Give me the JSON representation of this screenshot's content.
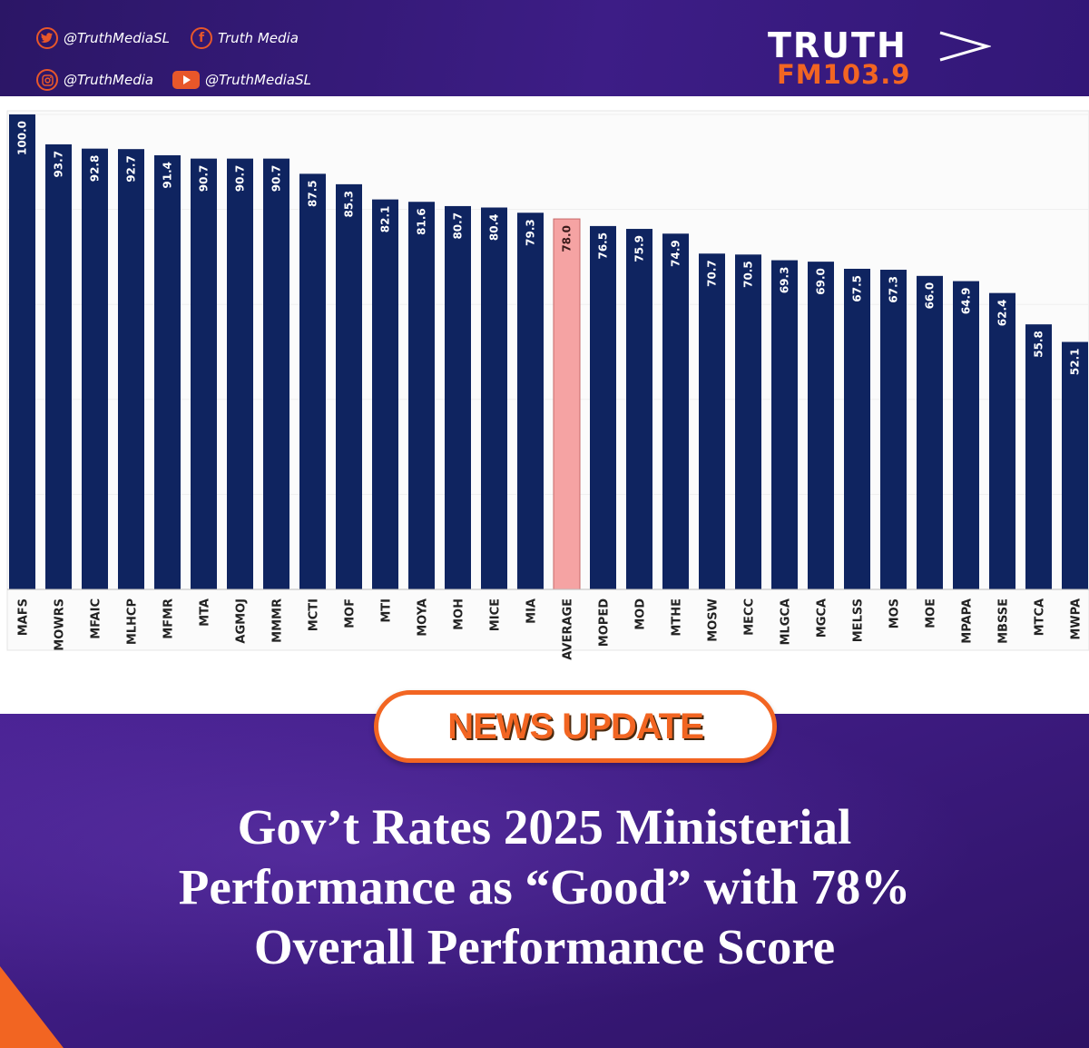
{
  "socials": {
    "twitter": "@TruthMediaSL",
    "facebook": "Truth Media",
    "instagram": "@TruthMedia",
    "youtube": "@TruthMediaSL"
  },
  "brand": {
    "line1": "TRUTH",
    "line2": "FM103.9"
  },
  "colors": {
    "bar": "#0f2460",
    "average_bar": "#f5a3a3",
    "accent": "#f26522"
  },
  "chart_data": {
    "type": "bar",
    "title": "",
    "xlabel": "",
    "ylabel": "",
    "ylim": [
      0,
      100
    ],
    "categories": [
      "MAFS",
      "MOWRS",
      "MFAIC",
      "MLHCP",
      "MFMR",
      "MTA",
      "AGMOJ",
      "MMMR",
      "MCTI",
      "MOF",
      "MTI",
      "MOYA",
      "MOH",
      "MICE",
      "MIA",
      "AVERAGE",
      "MOPED",
      "MOD",
      "MTHE",
      "MOSW",
      "MECC",
      "MLGCA",
      "MGCA",
      "MELSS",
      "MOS",
      "MOE",
      "MPAPA",
      "MBSSE",
      "MTCA",
      "MWPA"
    ],
    "values": [
      100.0,
      93.7,
      92.8,
      92.7,
      91.4,
      90.7,
      90.7,
      90.7,
      87.5,
      85.3,
      82.1,
      81.6,
      80.7,
      80.4,
      79.3,
      78.0,
      76.5,
      75.9,
      74.9,
      70.7,
      70.5,
      69.3,
      69.0,
      67.5,
      67.3,
      66.0,
      64.9,
      62.4,
      55.8,
      52.1
    ],
    "value_labels": [
      "100.0",
      "93.7",
      "92.8",
      "92.7",
      "91.4",
      "90.7",
      "90.7",
      "90.7",
      "87.5",
      "85.3",
      "82.1",
      "81.6",
      "80.7",
      "80.4",
      "79.3",
      "78.0",
      "76.5",
      "75.9",
      "74.9",
      "70.7",
      "70.5",
      "69.3",
      "69.0",
      "67.5",
      "67.3",
      "66.0",
      "64.9",
      "62.4",
      "55.8",
      "52.1"
    ],
    "highlight": "AVERAGE"
  },
  "badge": {
    "label": "NEWS UPDATE"
  },
  "headline": {
    "line1": "Gov’t Rates 2025 Ministerial",
    "line2": "Performance as “Good” with 78%",
    "line3": "Overall Performance Score"
  }
}
